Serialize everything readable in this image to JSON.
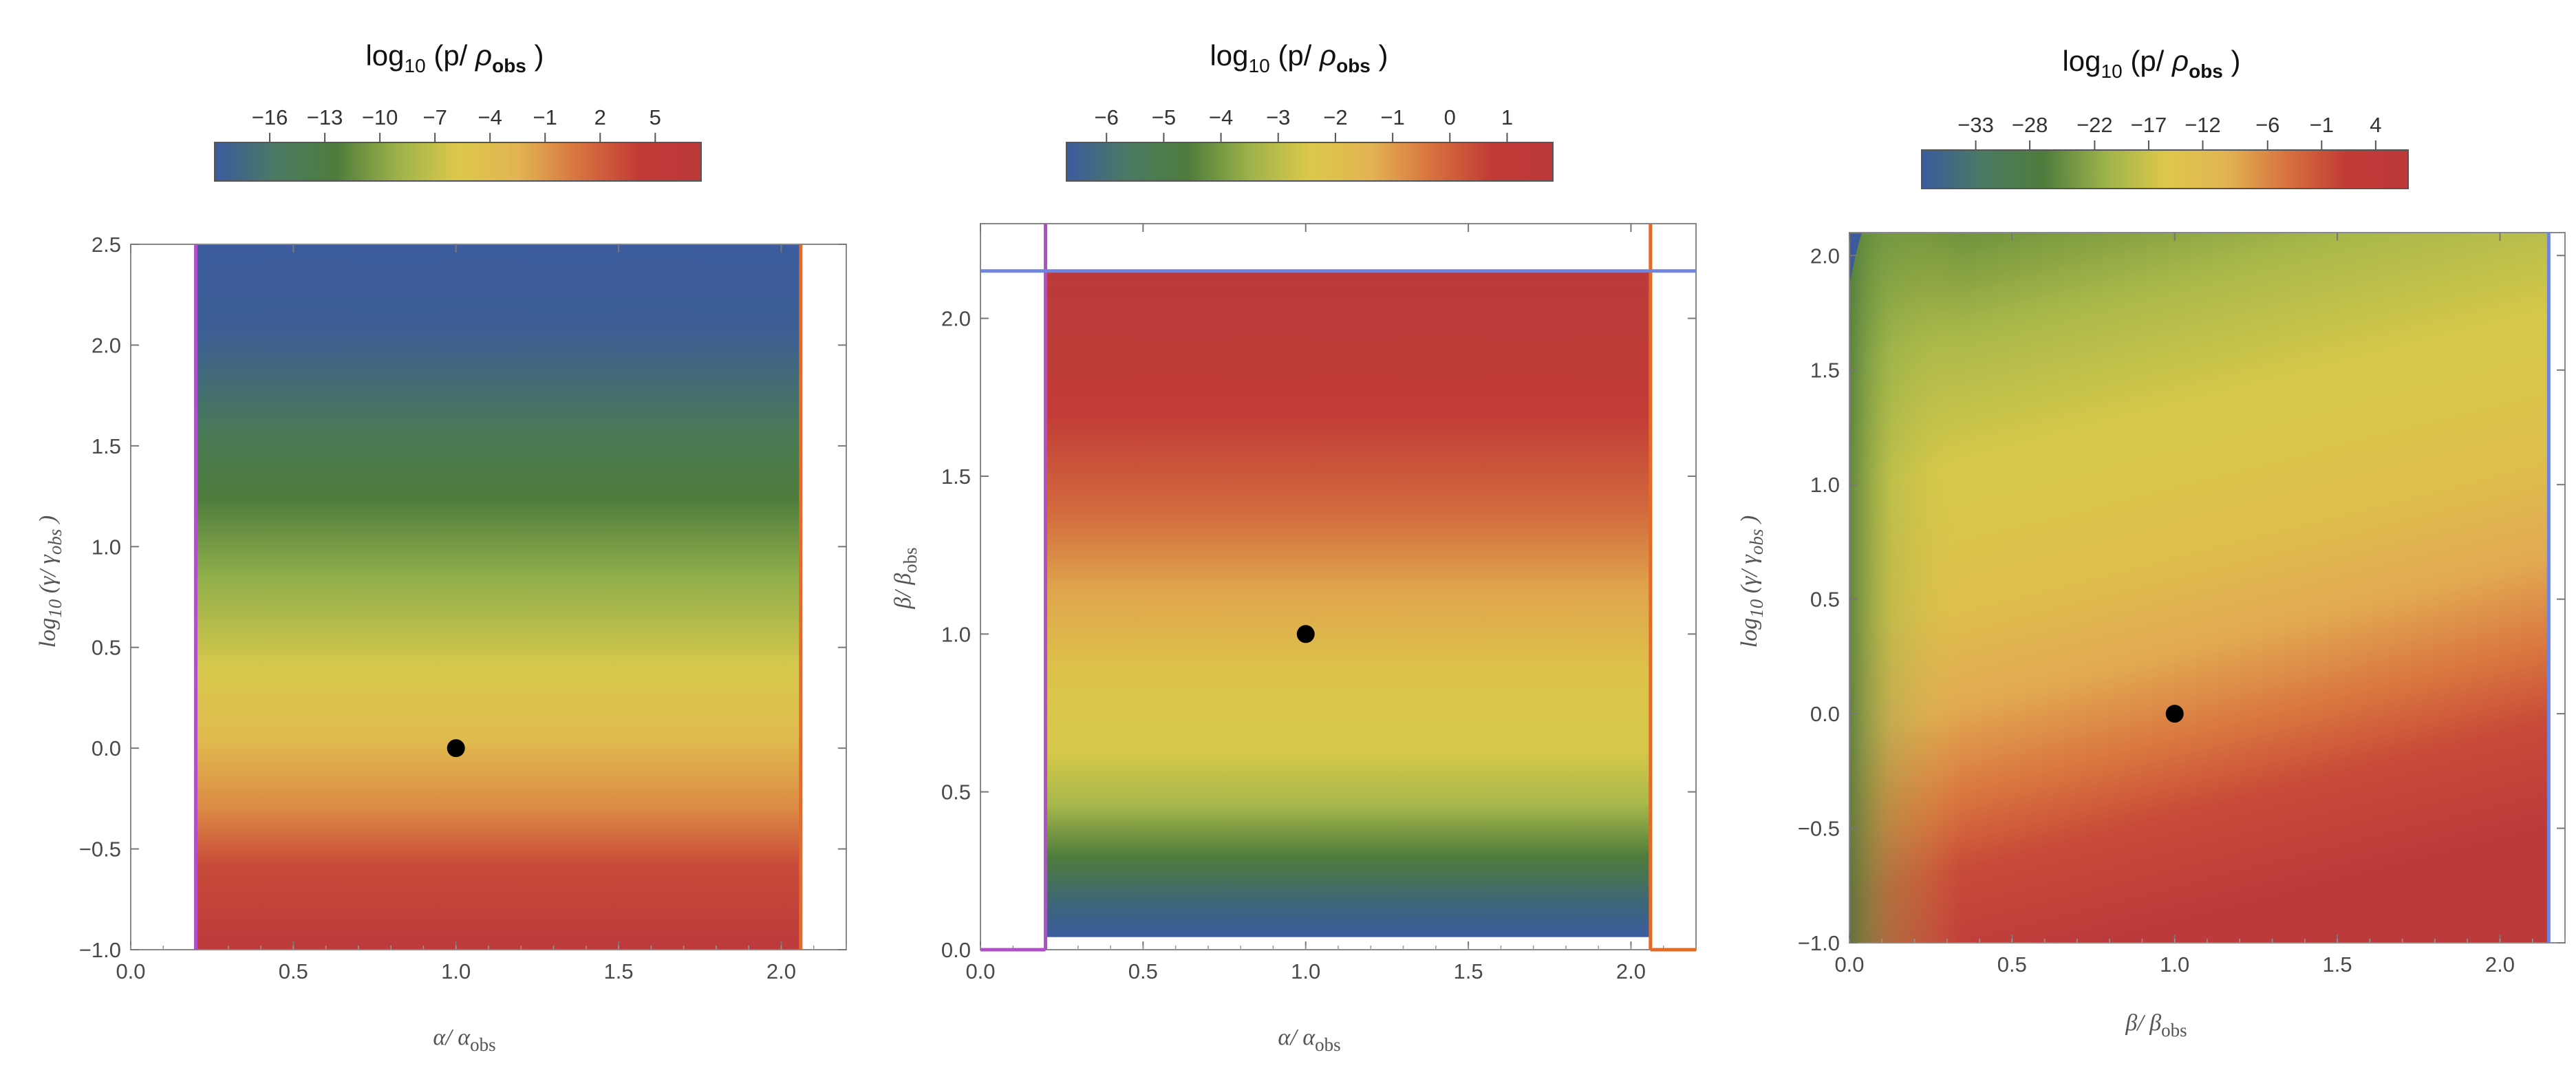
{
  "colors": {
    "colormap": [
      "#3b5b9e",
      "#4a7a63",
      "#4e7c3c",
      "#9cb24a",
      "#dcc84a",
      "#e2b453",
      "#d8723f",
      "#c13a35",
      "#bd3a3b"
    ],
    "purple_line": "#b14fc8",
    "orange_line": "#e56a26",
    "blue_line": "#6f86e0",
    "frame": "#888888",
    "marker": "#000000"
  },
  "chart_data": [
    {
      "type": "heatmap",
      "title": "",
      "colorbar": {
        "label_base": "log",
        "label_sub": "10",
        "label_open": " (p/ ",
        "label_rho": "ρ",
        "label_rho_sub": "obs",
        "label_close": " )",
        "ticks": [
          "-16",
          "-13",
          "-10",
          "-7",
          "-4",
          "-1",
          "2",
          "5"
        ],
        "tick_values": [
          -16,
          -13,
          -10,
          -7,
          -4,
          -1,
          2,
          5
        ],
        "range": [
          -19,
          7.5
        ]
      },
      "xlabel": {
        "main": "α/ α",
        "sub": "obs"
      },
      "ylabel": {
        "main": "log",
        "sub1": "10",
        "mid": " (γ/ γ",
        "sub2": "obs",
        "end": " )"
      },
      "xlim": [
        0.0,
        2.2
      ],
      "ylim": [
        -1.0,
        2.5
      ],
      "xticks": [
        "0.0",
        "0.5",
        "1.0",
        "1.5",
        "2.0"
      ],
      "xtick_values": [
        0.0,
        0.5,
        1.0,
        1.5,
        2.0
      ],
      "yticks": [
        "-1.0",
        "-0.5",
        "0.0",
        "0.5",
        "1.0",
        "1.5",
        "2.0",
        "2.5"
      ],
      "ytick_values": [
        -1.0,
        -0.5,
        0.0,
        0.5,
        1.0,
        1.5,
        2.0,
        2.5
      ],
      "fill_region": {
        "x": [
          0.2,
          2.06
        ],
        "y": [
          -1.0,
          2.5
        ]
      },
      "boundaries": [
        {
          "orient": "vertical",
          "value": 0.2,
          "color": "purple"
        },
        {
          "orient": "vertical",
          "value": 2.06,
          "color": "orange"
        }
      ],
      "point": {
        "x": 1.0,
        "y": 0.0
      },
      "field": "gamma"
    },
    {
      "type": "heatmap",
      "title": "",
      "colorbar": {
        "label_base": "log",
        "label_sub": "10",
        "label_open": " (p/ ",
        "label_rho": "ρ",
        "label_rho_sub": "obs",
        "label_close": " )",
        "ticks": [
          "-6",
          "-5",
          "-4",
          "-3",
          "-2",
          "-1",
          "0",
          "1"
        ],
        "tick_values": [
          -6,
          -5,
          -4,
          -3,
          -2,
          -1,
          0,
          1
        ],
        "range": [
          -6.7,
          1.8
        ]
      },
      "xlabel": {
        "main": "α/ α",
        "sub": "obs"
      },
      "ylabel": {
        "main": "β/ β",
        "sub": "obs"
      },
      "xlim": [
        0.0,
        2.2
      ],
      "ylim": [
        0.0,
        2.3
      ],
      "xticks": [
        "0.0",
        "0.5",
        "1.0",
        "1.5",
        "2.0"
      ],
      "xtick_values": [
        0.0,
        0.5,
        1.0,
        1.5,
        2.0
      ],
      "yticks": [
        "0.0",
        "0.5",
        "1.0",
        "1.5",
        "2.0"
      ],
      "ytick_values": [
        0.0,
        0.5,
        1.0,
        1.5,
        2.0
      ],
      "fill_region": {
        "x": [
          0.2,
          2.06
        ],
        "y": [
          0.04,
          2.15
        ]
      },
      "boundaries": [
        {
          "orient": "vertical",
          "value": 0.2,
          "color": "purple",
          "from": 0.0,
          "to": 2.3
        },
        {
          "orient": "vertical",
          "value": 2.06,
          "color": "orange",
          "from": 0.0,
          "to": 2.3
        },
        {
          "orient": "horizontal",
          "value": 2.15,
          "color": "blue",
          "from": 0.0,
          "to": 2.2
        },
        {
          "orient": "horizontal",
          "value": 0.0,
          "color": "purple",
          "from": 0.0,
          "to": 0.2
        },
        {
          "orient": "horizontal",
          "value": 0.0,
          "color": "orange",
          "from": 2.06,
          "to": 2.2
        }
      ],
      "point": {
        "x": 1.0,
        "y": 1.0
      },
      "field": "beta"
    },
    {
      "type": "heatmap",
      "title": "",
      "colorbar": {
        "label_base": "log",
        "label_sub": "10",
        "label_open": " (p/ ",
        "label_rho": "ρ",
        "label_rho_sub": "obs",
        "label_close": " )",
        "ticks": [
          "-33",
          "-28",
          "-22",
          "-17",
          "-12",
          "-6",
          "-1",
          "4"
        ],
        "tick_values": [
          -33,
          -28,
          -22,
          -17,
          -12,
          -6,
          -1,
          4
        ],
        "range": [
          -38,
          7
        ]
      },
      "xlabel": {
        "main": "β/ β",
        "sub": "obs"
      },
      "ylabel": {
        "main": "log",
        "sub1": "10",
        "mid": " (γ/ γ",
        "sub2": "obs",
        "end": " )"
      },
      "xlim": [
        0.0,
        2.2
      ],
      "ylim": [
        -1.0,
        2.1
      ],
      "xticks": [
        "0.0",
        "0.5",
        "1.0",
        "1.5",
        "2.0"
      ],
      "xtick_values": [
        0.0,
        0.5,
        1.0,
        1.5,
        2.0
      ],
      "yticks": [
        "-1.0",
        "-0.5",
        "0.0",
        "0.5",
        "1.0",
        "1.5",
        "2.0"
      ],
      "ytick_values": [
        -1.0,
        -0.5,
        0.0,
        0.5,
        1.0,
        1.5,
        2.0
      ],
      "fill_region": {
        "x": [
          0.0,
          2.15
        ],
        "y": [
          -1.0,
          2.1
        ]
      },
      "boundaries": [
        {
          "orient": "vertical",
          "value": 2.15,
          "color": "blue"
        }
      ],
      "point": {
        "x": 1.0,
        "y": 0.0
      },
      "field": "betagamma"
    }
  ]
}
